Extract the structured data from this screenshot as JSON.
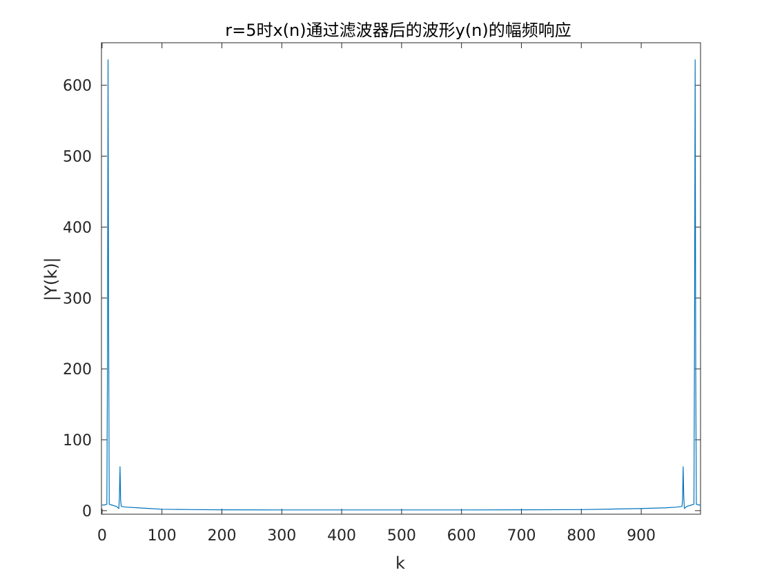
{
  "chart_data": {
    "type": "line",
    "title": "r=5时x(n)通过滤波器后的波形y(n)的幅频响应",
    "xlabel": "k",
    "ylabel": "|Y(k)|",
    "xlim": [
      -1,
      999
    ],
    "ylim": [
      -5,
      660
    ],
    "xticks": [
      0,
      100,
      200,
      300,
      400,
      500,
      600,
      700,
      800,
      900
    ],
    "yticks": [
      0,
      100,
      200,
      300,
      400,
      500,
      600
    ],
    "box": true,
    "grid": false,
    "series": [
      {
        "color": "#0072BD",
        "x": [
          0,
          4,
          8,
          9,
          10,
          11,
          12,
          16,
          24,
          28,
          29,
          30,
          31,
          32,
          40,
          60,
          80,
          100,
          150,
          200,
          300,
          400,
          500,
          600,
          700,
          800,
          900,
          940,
          960,
          968,
          969,
          970,
          971,
          972,
          976,
          984,
          988,
          989,
          990,
          991,
          992,
          996,
          999
        ],
        "y": [
          8,
          8,
          9,
          200,
          636,
          250,
          9,
          8,
          6,
          3,
          20,
          62,
          15,
          6,
          5,
          4,
          3,
          2,
          1.5,
          1.2,
          1,
          1,
          1,
          1,
          1.2,
          1.5,
          3,
          4,
          5,
          6,
          15,
          62,
          20,
          3,
          6,
          8,
          9,
          250,
          636,
          200,
          9,
          8,
          8
        ]
      }
    ]
  }
}
